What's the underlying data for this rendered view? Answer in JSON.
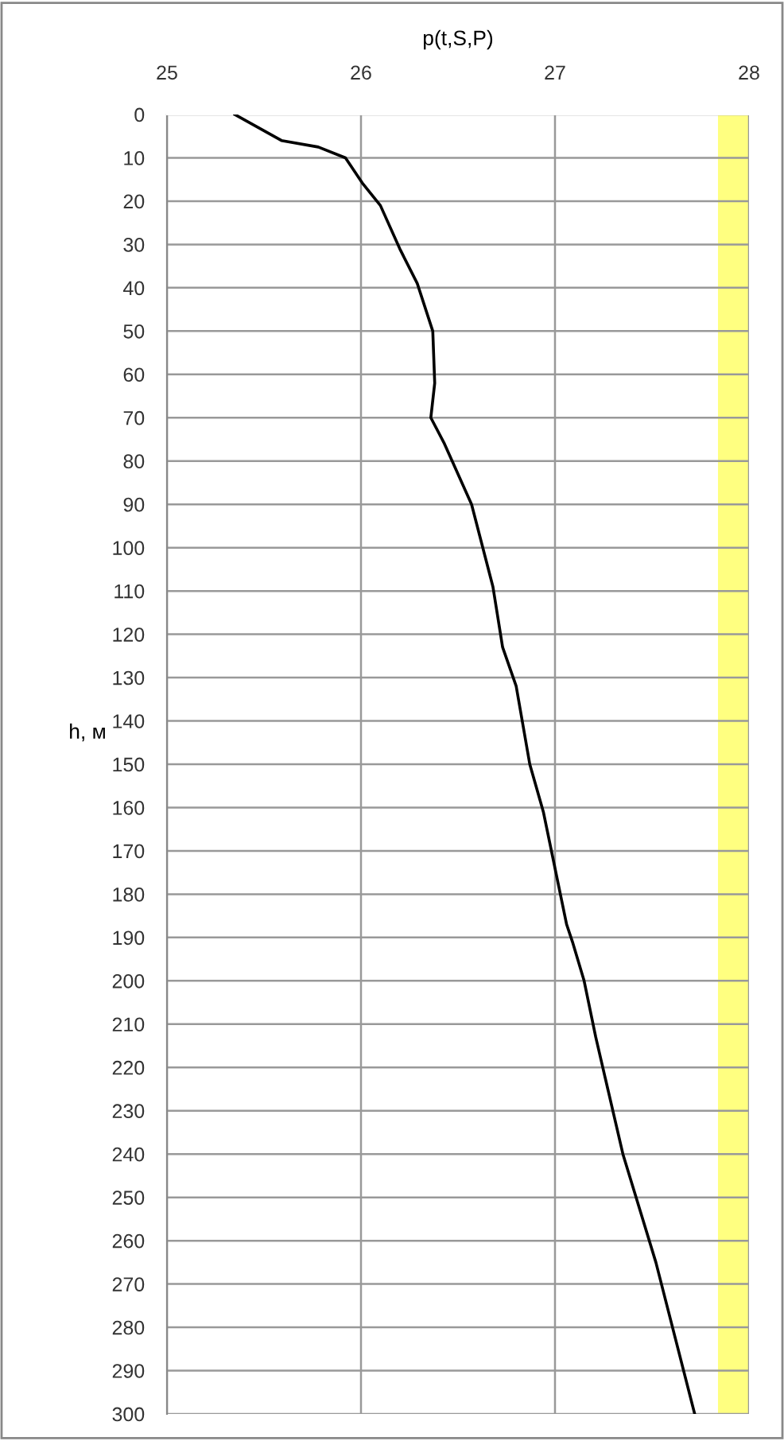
{
  "chart_data": {
    "type": "line",
    "orientation": "horizontal",
    "title": "p(t,S,P)",
    "ylabel": "h, м",
    "x": [
      0,
      6,
      7.5,
      10,
      16,
      21,
      31,
      39,
      50,
      62,
      70,
      76,
      80,
      90,
      109,
      123,
      132,
      150,
      161,
      187,
      191,
      200,
      213,
      240,
      265,
      300
    ],
    "series": [
      {
        "color": "#000000",
        "values": [
          25.35,
          25.59,
          25.78,
          25.92,
          26.01,
          26.1,
          26.2,
          26.29,
          26.37,
          26.38,
          26.36,
          26.43,
          26.47,
          26.57,
          26.68,
          26.73,
          26.8,
          26.87,
          26.94,
          27.06,
          27.09,
          27.15,
          27.21,
          27.35,
          27.52,
          27.72
        ]
      }
    ],
    "xlim": [
      25,
      28
    ],
    "xticks": [
      25,
      26,
      27,
      28
    ],
    "ylim": [
      300,
      0
    ],
    "yticks": [
      0,
      10,
      20,
      30,
      40,
      50,
      60,
      70,
      80,
      90,
      100,
      110,
      120,
      130,
      140,
      150,
      160,
      170,
      180,
      190,
      200,
      210,
      220,
      230,
      240,
      250,
      260,
      270,
      280,
      290,
      300
    ],
    "bands": [
      {
        "axis": "x",
        "from": 27.84,
        "to": 28,
        "color": "#ffff80"
      }
    ],
    "grid": true,
    "legend": false,
    "marker": "none",
    "line_style": "solid"
  }
}
